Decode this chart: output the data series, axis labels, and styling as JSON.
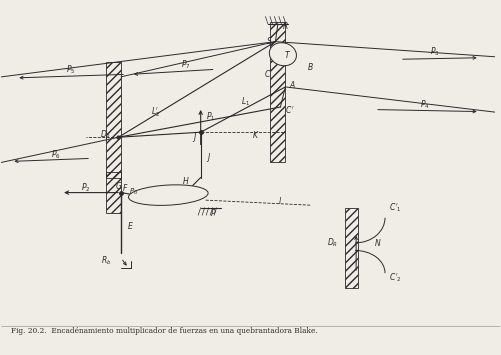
{
  "title": "Fig. 20.2.  Encadénamiento multiplicador de fuerzas en una quebrantadora Blake.",
  "bg_color": "#f0ede6",
  "line_color": "#2a2a2a"
}
